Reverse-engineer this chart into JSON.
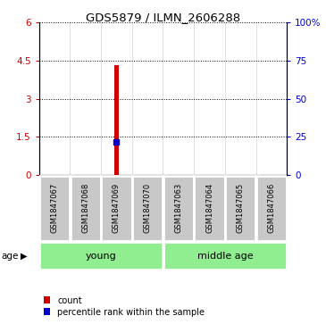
{
  "title": "GDS5879 / ILMN_2606288",
  "samples": [
    "GSM1847067",
    "GSM1847068",
    "GSM1847069",
    "GSM1847070",
    "GSM1847063",
    "GSM1847064",
    "GSM1847065",
    "GSM1847066"
  ],
  "bar_index": 2,
  "bar_value": 4.32,
  "percentile_value": 1.3,
  "ylim_left": [
    0,
    6
  ],
  "ylim_right": [
    0,
    100
  ],
  "yticks_left": [
    0,
    1.5,
    3,
    4.5,
    6
  ],
  "yticks_right": [
    0,
    25,
    50,
    75,
    100
  ],
  "groups": [
    {
      "label": "young",
      "start": 0,
      "end": 3
    },
    {
      "label": "middle age",
      "start": 4,
      "end": 7
    }
  ],
  "group_color": "#90EE90",
  "sample_box_color": "#C8C8C8",
  "bar_color": "#CC0000",
  "percentile_color": "#0000CC",
  "grid_color": "#000000",
  "age_label": "age",
  "legend_count": "count",
  "legend_pct": "percentile rank within the sample"
}
